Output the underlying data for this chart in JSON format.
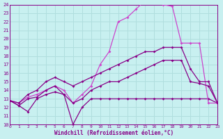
{
  "xlabel": "Windchill (Refroidissement éolien,°C)",
  "xlim": [
    0,
    23
  ],
  "ylim": [
    10,
    24
  ],
  "xticks": [
    0,
    1,
    2,
    3,
    4,
    5,
    6,
    7,
    8,
    9,
    10,
    11,
    12,
    13,
    14,
    15,
    16,
    17,
    18,
    19,
    20,
    21,
    22,
    23
  ],
  "yticks": [
    10,
    11,
    12,
    13,
    14,
    15,
    16,
    17,
    18,
    19,
    20,
    21,
    22,
    23,
    24
  ],
  "bg_color": "#c8f0f0",
  "grid_color": "#b0dede",
  "line_color": "#880088",
  "line_color_bright": "#cc44cc",
  "series": [
    {
      "x": [
        0,
        1,
        2,
        3,
        4,
        5,
        6,
        7,
        8,
        9,
        10,
        11,
        12,
        13,
        14,
        15,
        16,
        17,
        18,
        19,
        20,
        21,
        22,
        23
      ],
      "y": [
        12.8,
        12.2,
        11.5,
        13.0,
        13.5,
        13.8,
        13.5,
        10.0,
        12.0,
        13.0,
        13.0,
        13.0,
        13.0,
        13.0,
        13.0,
        13.0,
        13.0,
        13.0,
        13.0,
        13.0,
        13.0,
        13.0,
        13.0,
        12.5
      ],
      "color": "#880088",
      "lw": 0.9
    },
    {
      "x": [
        0,
        1,
        2,
        3,
        4,
        5,
        6,
        7,
        8,
        9,
        10,
        11,
        12,
        13,
        14,
        15,
        16,
        17,
        18,
        19,
        20,
        21,
        22,
        23
      ],
      "y": [
        12.8,
        12.5,
        13.2,
        13.5,
        14.0,
        14.5,
        14.0,
        12.5,
        13.5,
        14.5,
        17.0,
        18.5,
        22.0,
        22.5,
        23.5,
        24.5,
        24.5,
        24.0,
        23.8,
        19.5,
        19.5,
        19.5,
        12.5,
        12.5
      ],
      "color": "#cc44cc",
      "lw": 0.9
    },
    {
      "x": [
        0,
        1,
        2,
        3,
        4,
        5,
        6,
        7,
        8,
        9,
        10,
        11,
        12,
        13,
        14,
        15,
        16,
        17,
        18,
        19,
        20,
        21,
        22,
        23
      ],
      "y": [
        12.8,
        12.5,
        13.5,
        14.0,
        15.0,
        15.5,
        15.0,
        14.5,
        15.0,
        15.5,
        16.0,
        16.5,
        17.0,
        17.5,
        18.0,
        18.5,
        18.5,
        19.0,
        19.0,
        19.0,
        16.5,
        15.0,
        15.0,
        12.5
      ],
      "color": "#880088",
      "lw": 0.9
    },
    {
      "x": [
        0,
        1,
        2,
        3,
        4,
        5,
        6,
        7,
        8,
        9,
        10,
        11,
        12,
        13,
        14,
        15,
        16,
        17,
        18,
        19,
        20,
        21,
        22,
        23
      ],
      "y": [
        12.8,
        12.2,
        13.0,
        13.2,
        14.0,
        14.5,
        13.5,
        12.5,
        13.0,
        14.0,
        14.5,
        15.0,
        15.0,
        15.5,
        16.0,
        16.5,
        17.0,
        17.5,
        17.5,
        17.5,
        15.0,
        14.8,
        14.5,
        12.5
      ],
      "color": "#880088",
      "lw": 0.9
    }
  ]
}
